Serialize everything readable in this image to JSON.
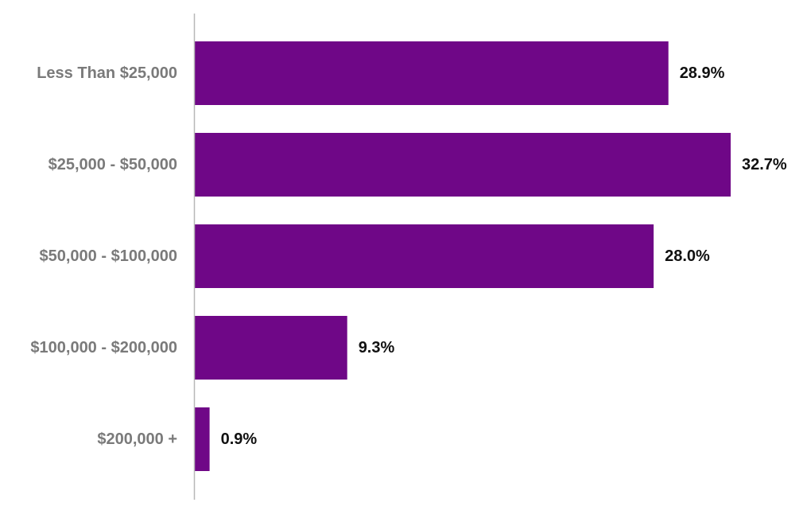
{
  "chart_data": {
    "type": "bar",
    "orientation": "horizontal",
    "title": "",
    "xlabel": "",
    "ylabel": "",
    "categories": [
      "Less Than $25,000",
      "$25,000 - $50,000",
      "$50,000 - $100,000",
      "$100,000 - $200,000",
      "$200,000 +"
    ],
    "values": [
      28.9,
      32.7,
      28.0,
      9.3,
      0.9
    ],
    "value_labels": [
      "28.9%",
      "32.7%",
      "28.0%",
      "9.3%",
      "0.9%"
    ],
    "xlim": [
      0,
      32.7
    ],
    "grid": false,
    "legend": "none",
    "colors": {
      "bar": "#6f0787",
      "category_text": "#7a7a7a",
      "value_text": "#111111",
      "axis": "#b8b8b8"
    }
  }
}
